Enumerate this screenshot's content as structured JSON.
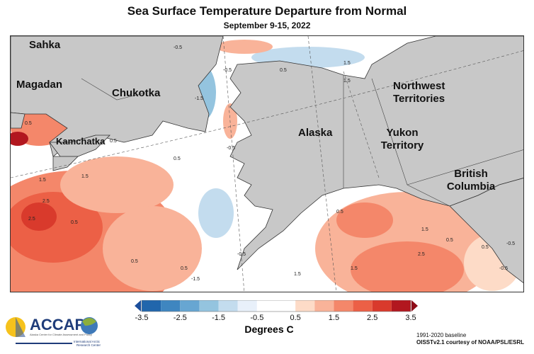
{
  "header": {
    "title": "Sea Surface Temperature Departure from Normal",
    "subtitle": "September 9-15, 2022"
  },
  "map": {
    "regions": [
      "Sahka",
      "Magadan",
      "Chukotka",
      "Kamchatka",
      "Alaska",
      "Yukon Territory",
      "Northwest Territories",
      "British Columbia"
    ],
    "contour_labels": [
      "-0.5",
      "0.5",
      "1.5",
      "-0.5",
      "1.5",
      "0.5",
      "-1.5",
      "0.5",
      "0.5",
      "1.5",
      "2.5",
      "2.5",
      "1.5",
      "0.5",
      "0.5",
      "-0.5",
      "0.5",
      "1.5",
      "0.5",
      "1.5",
      "-0.5",
      "-1.5",
      "0.5",
      "1.5",
      "-0.5",
      "2.5",
      "0.5",
      "-0.5"
    ]
  },
  "colorbar": {
    "title": "Degrees C",
    "ticks": [
      "-3.5",
      "-2.5",
      "-1.5",
      "-0.5",
      "0.5",
      "1.5",
      "2.5",
      "3.5"
    ],
    "bin_edges": [
      -3.5,
      -3,
      -2.5,
      -2,
      -1.5,
      -1,
      -0.5,
      0,
      0.5,
      1,
      1.5,
      2,
      2.5,
      3,
      3.5
    ],
    "colors": [
      "#2166ac",
      "#3f86c0",
      "#67a6d2",
      "#94c4df",
      "#c3dcee",
      "#e8f0fa",
      "#ffffff",
      "#ffffff",
      "#fddbc7",
      "#f9b399",
      "#f4876a",
      "#ec6046",
      "#d93a2c",
      "#b2171f"
    ],
    "under_color": "#1c4f9c",
    "over_color": "#8e0c18"
  },
  "logos": {
    "accap": "ACCAP",
    "accap_sub": "Alaska Center for Climate Assessment and Policy",
    "iarc": "International Arctic Research Center"
  },
  "credits": {
    "baseline": "1991-2020 baseline",
    "source": "OISSTv2.1 courtesy of NOAA/PSL/ESRL"
  }
}
